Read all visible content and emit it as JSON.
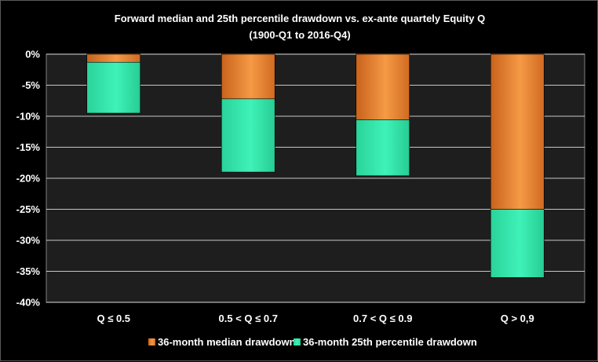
{
  "chart_data": {
    "type": "bar",
    "stacked": true,
    "title": "Forward median and 25th percentile drawdown vs. ex-ante quartely Equity Q",
    "subtitle": "(1900-Q1 to 2016-Q4)",
    "categories": [
      "Q ≤ 0.5",
      "0.5 < Q ≤ 0.7",
      "0.7 < Q ≤ 0.9",
      "Q > 0,9"
    ],
    "series": [
      {
        "name": "36-month median drawdown",
        "values": [
          -1.3,
          -7.2,
          -10.6,
          -25.0
        ],
        "color": "#f28a30"
      },
      {
        "name": "36-month 25th percentile drawdown",
        "values": [
          -8.2,
          -11.8,
          -9.0,
          -11.0
        ],
        "color": "#2ee8a8"
      }
    ],
    "ylim": [
      -40,
      0
    ],
    "yticks": [
      0,
      -5,
      -10,
      -15,
      -20,
      -25,
      -30,
      -35,
      -40
    ],
    "ytick_labels": [
      "0%",
      "-5%",
      "-10%",
      "-15%",
      "-20%",
      "-25%",
      "-30%",
      "-35%",
      "-40%"
    ],
    "grid": true,
    "legend_position": "bottom",
    "background_color": "#000000",
    "plot_background_color": "#1e1e1e"
  }
}
